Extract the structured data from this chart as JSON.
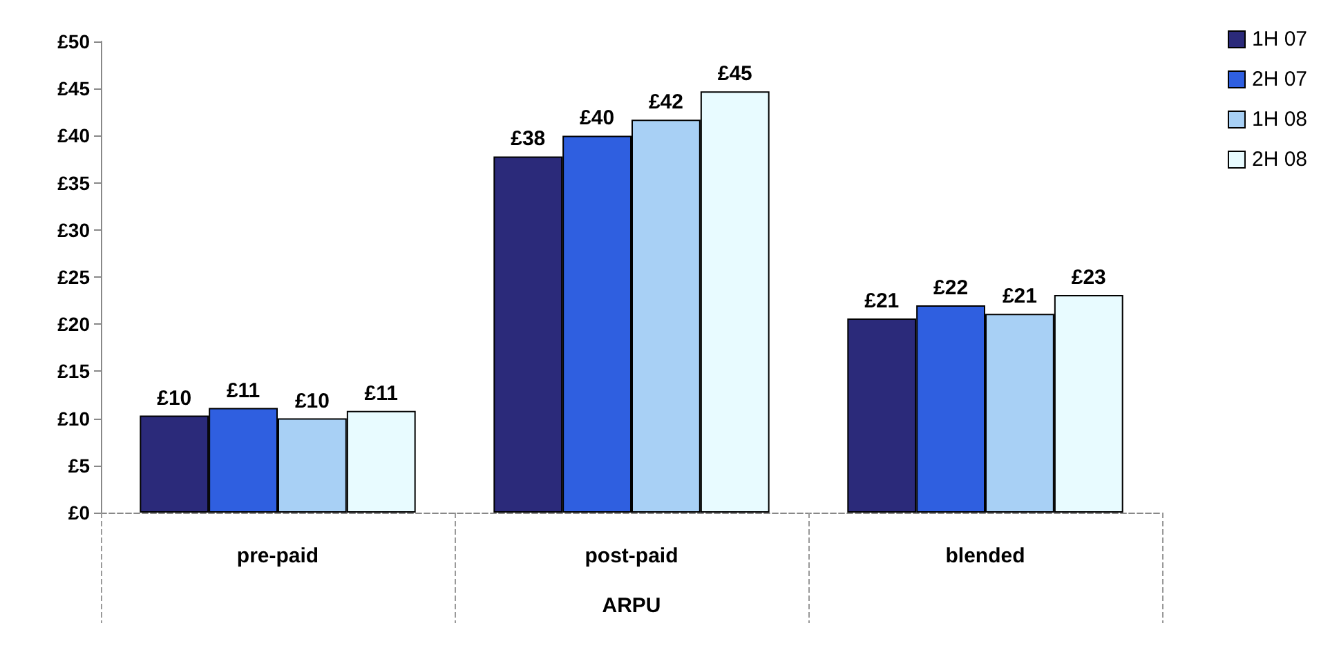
{
  "chart_data": {
    "type": "bar",
    "xlabel": "ARPU",
    "categories": [
      "pre-paid",
      "post-paid",
      "blended"
    ],
    "series": [
      {
        "name": "1H 07",
        "color": "#2b2a7a",
        "values": [
          10.3,
          37.8,
          20.6
        ],
        "value_labels": [
          "£10",
          "£38",
          "£21"
        ]
      },
      {
        "name": "2H 07",
        "color": "#2f5fe0",
        "values": [
          11.1,
          40.0,
          22.0
        ],
        "value_labels": [
          "£11",
          "£40",
          "£22"
        ]
      },
      {
        "name": "1H 08",
        "color": "#a8d0f5",
        "values": [
          10.0,
          41.7,
          21.1
        ],
        "value_labels": [
          "£10",
          "£42",
          "£21"
        ]
      },
      {
        "name": "2H 08",
        "color": "#e8fbff",
        "values": [
          10.8,
          44.7,
          23.1
        ],
        "value_labels": [
          "£11",
          "£45",
          "£23"
        ]
      }
    ],
    "ylim": [
      0,
      50
    ],
    "yticks": [
      {
        "value": 0,
        "label": "£0"
      },
      {
        "value": 5,
        "label": "£5"
      },
      {
        "value": 10,
        "label": "£10"
      },
      {
        "value": 15,
        "label": "£15"
      },
      {
        "value": 20,
        "label": "£20"
      },
      {
        "value": 25,
        "label": "£25"
      },
      {
        "value": 30,
        "label": "£30"
      },
      {
        "value": 35,
        "label": "£35"
      },
      {
        "value": 40,
        "label": "£40"
      },
      {
        "value": 45,
        "label": "£45"
      },
      {
        "value": 50,
        "label": "£50"
      }
    ],
    "grid": false,
    "legend": "right"
  }
}
